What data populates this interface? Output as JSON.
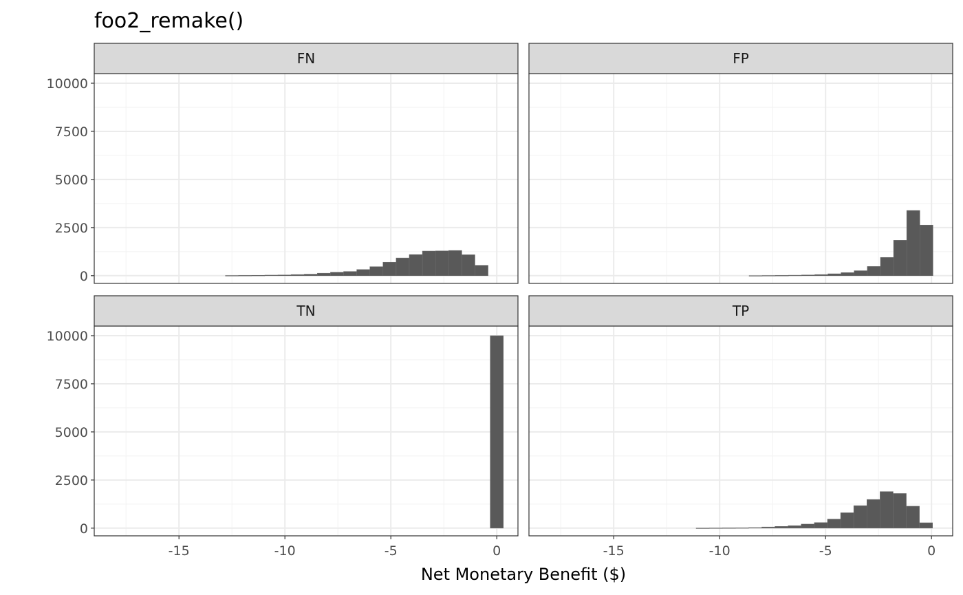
{
  "chart_data": {
    "type": "bar",
    "title": "foo2_remake()",
    "xlabel": "Net Monetary Benefit ($)",
    "ylabel": "",
    "xlim": [
      -19,
      1
    ],
    "ylim": [
      -400,
      10500
    ],
    "x_ticks": [
      -15,
      -10,
      -5,
      0
    ],
    "x_tick_labels": [
      "-15",
      "-10",
      "-5",
      "0"
    ],
    "y_ticks": [
      0,
      2500,
      5000,
      7500,
      10000
    ],
    "y_tick_labels": [
      "0",
      "2500",
      "5000",
      "7500",
      "10000"
    ],
    "grid": true,
    "layout": "2x2 facets",
    "bar_color": "#595959",
    "bin_width": 0.62,
    "panels": [
      {
        "label": "FN",
        "bin_centers": [
          -12.5,
          -11.88,
          -11.26,
          -10.64,
          -10.02,
          -9.4,
          -8.78,
          -8.16,
          -7.54,
          -6.92,
          -6.3,
          -5.68,
          -5.06,
          -4.44,
          -3.82,
          -3.2,
          -2.58,
          -1.96,
          -1.34,
          -0.72
        ],
        "counts": [
          10,
          15,
          20,
          30,
          40,
          60,
          80,
          130,
          180,
          220,
          320,
          470,
          700,
          920,
          1100,
          1280,
          1290,
          1310,
          1090,
          540
        ]
      },
      {
        "label": "FP",
        "bin_centers": [
          -8.3,
          -7.68,
          -7.06,
          -6.44,
          -5.82,
          -5.2,
          -4.58,
          -3.96,
          -3.34,
          -2.72,
          -2.1,
          -1.48,
          -0.86,
          -0.24
        ],
        "counts": [
          5,
          10,
          15,
          25,
          40,
          60,
          100,
          160,
          260,
          480,
          950,
          1840,
          3390,
          2630
        ]
      },
      {
        "label": "TN",
        "bin_centers": [
          0
        ],
        "counts": [
          10000
        ]
      },
      {
        "label": "TP",
        "bin_centers": [
          -10.8,
          -10.18,
          -9.56,
          -8.94,
          -8.32,
          -7.7,
          -7.08,
          -6.46,
          -5.84,
          -5.22,
          -4.6,
          -3.98,
          -3.36,
          -2.74,
          -2.12,
          -1.5,
          -0.88,
          -0.26
        ],
        "counts": [
          5,
          10,
          15,
          20,
          30,
          60,
          90,
          130,
          210,
          290,
          470,
          800,
          1170,
          1490,
          1900,
          1800,
          1140,
          280
        ]
      }
    ]
  }
}
